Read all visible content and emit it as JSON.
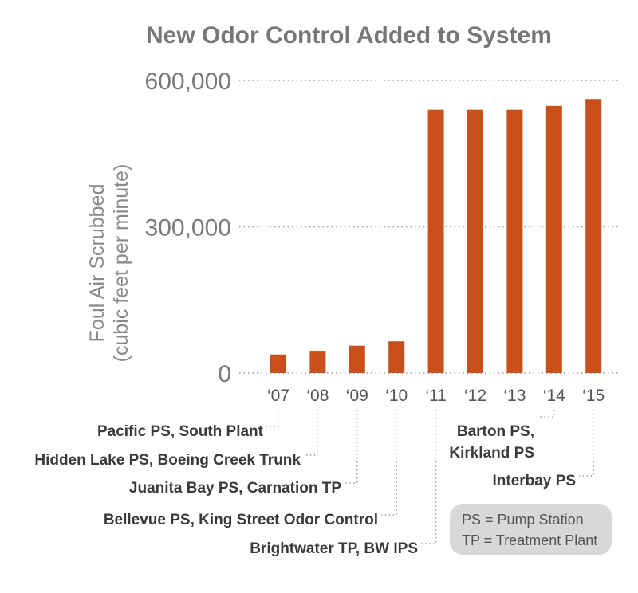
{
  "chart_data": {
    "type": "bar",
    "title": "New Odor Control Added to System",
    "ylabel": [
      "Foul Air Scrubbed",
      "(cubic feet per minute)"
    ],
    "categories": [
      "‘07",
      "‘08",
      "‘09",
      "‘10",
      "‘11",
      "‘12",
      "‘13",
      "‘14",
      "‘15"
    ],
    "values": [
      38000,
      44000,
      56000,
      65000,
      540000,
      540000,
      540000,
      548000,
      562000
    ],
    "ylim": [
      0,
      600000
    ],
    "yticks": [
      {
        "value": 0,
        "label": "0"
      },
      {
        "value": 300000,
        "label": "300,000"
      },
      {
        "value": 600000,
        "label": "600,000"
      }
    ],
    "grid": "dotted horizontal",
    "bar_color": "#c9501c",
    "annotations": [
      {
        "category_index": 0,
        "lines": [
          "Pacific PS, South Plant"
        ],
        "side": "left"
      },
      {
        "category_index": 1,
        "lines": [
          "Hidden Lake PS, Boeing Creek Trunk"
        ],
        "side": "left"
      },
      {
        "category_index": 2,
        "lines": [
          "Juanita Bay PS, Carnation TP"
        ],
        "side": "left"
      },
      {
        "category_index": 3,
        "lines": [
          "Bellevue PS, King Street Odor Control"
        ],
        "side": "left"
      },
      {
        "category_index": 4,
        "lines": [
          "Brightwater TP, BW IPS"
        ],
        "side": "left"
      },
      {
        "category_index": 7,
        "lines": [
          "Barton PS,",
          "Kirkland PS"
        ],
        "side": "left"
      },
      {
        "category_index": 8,
        "lines": [
          "Interbay PS"
        ],
        "side": "left"
      }
    ],
    "legend": [
      "PS = Pump Station",
      "TP = Treatment Plant"
    ]
  }
}
